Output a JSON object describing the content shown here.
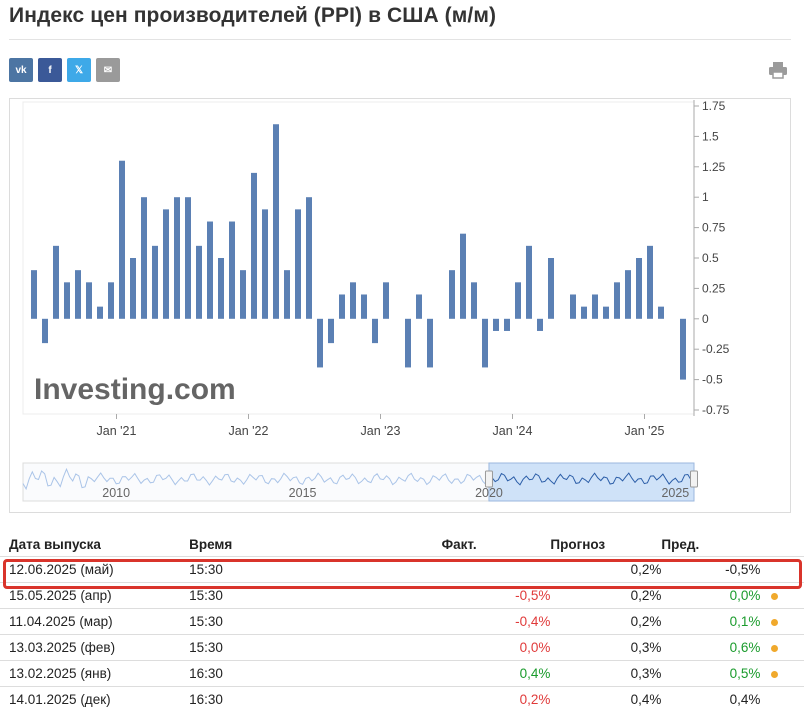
{
  "page": {
    "title": "Индекс цен производителей (PPI) в США (м/м)"
  },
  "share": {
    "buttons": [
      {
        "name": "vk-share-button",
        "label": "vk",
        "color": "#4c75a3"
      },
      {
        "name": "facebook-share-button",
        "label": "f",
        "color": "#3b5998"
      },
      {
        "name": "x-share-button",
        "label": "𝕏",
        "color": "#3ea9e8"
      },
      {
        "name": "email-share-button",
        "label": "✉",
        "color": "#9a9a9a"
      }
    ],
    "print_icon": "printer-icon"
  },
  "chart_data": {
    "type": "bar",
    "watermark": "Investing.com",
    "x_tick_labels": [
      "Jan '21",
      "Jan '22",
      "Jan '23",
      "Jan '24",
      "Jan '25"
    ],
    "x_tick_month_index": [
      0,
      12,
      24,
      36,
      48
    ],
    "start_month_index": -8,
    "y_ticks": [
      "1.75",
      "1.5",
      "1.25",
      "1",
      "0.75",
      "0.5",
      "0.25",
      "0",
      "-0.25",
      "-0.5",
      "-0.75"
    ],
    "ylim": [
      -0.75,
      1.75
    ],
    "color": "#5b80b4",
    "values": [
      0.4,
      -0.2,
      0.6,
      0.3,
      0.4,
      0.3,
      0.1,
      0.3,
      1.3,
      0.5,
      1.0,
      0.6,
      0.9,
      1.0,
      1.0,
      0.6,
      0.8,
      0.5,
      0.8,
      0.4,
      1.2,
      0.9,
      1.6,
      0.4,
      0.9,
      1.0,
      -0.4,
      -0.2,
      0.2,
      0.3,
      0.2,
      -0.2,
      0.3,
      0.0,
      -0.4,
      0.2,
      -0.4,
      0.0,
      0.4,
      0.7,
      0.3,
      -0.4,
      -0.1,
      -0.1,
      0.3,
      0.6,
      -0.1,
      0.5,
      0.0,
      0.2,
      0.1,
      0.2,
      0.1,
      0.3,
      0.4,
      0.5,
      0.6,
      0.1,
      0.0,
      -0.5
    ],
    "navigator": {
      "labels": [
        "2010",
        "2015",
        "2020",
        "2025"
      ],
      "label_year": [
        2010,
        2015,
        2020,
        2025
      ],
      "year_range": [
        2007.5,
        2025.5
      ],
      "selection_years": [
        2020.0,
        2025.5
      ],
      "line_color": "#aac4e8",
      "selected_line_color": "#2c5ea8",
      "selection_fill": "#cfe2f8"
    }
  },
  "table": {
    "headers": {
      "date": "Дата выпуска",
      "time": "Время",
      "actual": "Факт.",
      "forecast": "Прогноз",
      "previous": "Пред."
    },
    "rows": [
      {
        "date": "12.06.2025 (май)",
        "time": "15:30",
        "actual": "",
        "actual_color": "",
        "forecast": "0,2%",
        "previous": "-0,5%",
        "previous_color": "",
        "dot": false
      },
      {
        "date": "15.05.2025 (апр)",
        "time": "15:30",
        "actual": "-0,5%",
        "actual_color": "neg",
        "forecast": "0,2%",
        "previous": "0,0%",
        "previous_color": "pos",
        "dot": true
      },
      {
        "date": "11.04.2025 (мар)",
        "time": "15:30",
        "actual": "-0,4%",
        "actual_color": "neg",
        "forecast": "0,2%",
        "previous": "0,1%",
        "previous_color": "pos",
        "dot": true
      },
      {
        "date": "13.03.2025 (фев)",
        "time": "15:30",
        "actual": "0,0%",
        "actual_color": "neg",
        "forecast": "0,3%",
        "previous": "0,6%",
        "previous_color": "pos",
        "dot": true
      },
      {
        "date": "13.02.2025 (янв)",
        "time": "16:30",
        "actual": "0,4%",
        "actual_color": "pos",
        "forecast": "0,3%",
        "previous": "0,5%",
        "previous_color": "pos",
        "dot": true
      },
      {
        "date": "14.01.2025 (дек)",
        "time": "16:30",
        "actual": "0,2%",
        "actual_color": "neg",
        "forecast": "0,4%",
        "previous": "0,4%",
        "previous_color": "",
        "dot": false
      }
    ]
  }
}
